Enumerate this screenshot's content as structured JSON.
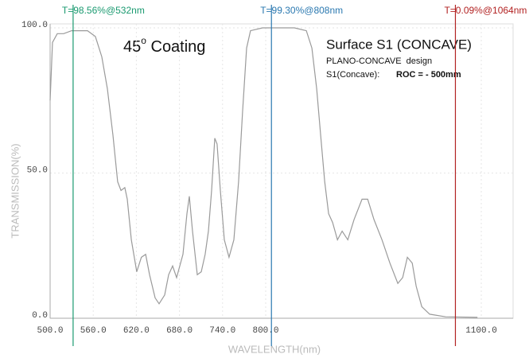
{
  "chart_data": {
    "type": "line",
    "title": {
      "main": "45",
      "sup": "o",
      "rest": " Coating"
    },
    "subtitle": "Surface S1 (CONCAVE)",
    "notes": [
      "PLANO-CONCAVE  design",
      "S1(Concave):",
      "ROC = - 500mm"
    ],
    "xlabel": "WAVELENGTH(nm)",
    "ylabel": "TRANSMISSION(%)",
    "xlim": [
      500,
      1100
    ],
    "ylim": [
      0,
      100
    ],
    "xticks": [
      {
        "value": 500,
        "label": "500.0"
      },
      {
        "value": 560,
        "label": "560.0"
      },
      {
        "value": 620,
        "label": "620.0"
      },
      {
        "value": 680,
        "label": "680.0"
      },
      {
        "value": 740,
        "label": "740.0"
      },
      {
        "value": 800,
        "label": "800.0"
      },
      {
        "value": 1100,
        "label": "1100.0"
      }
    ],
    "yticks": [
      {
        "value": 0,
        "label": "0.0"
      },
      {
        "value": 50,
        "label": "50.0"
      },
      {
        "value": 100,
        "label": "100.0"
      }
    ],
    "grid": true,
    "x": [
      500,
      503.3,
      510,
      518.8,
      529.9,
      552,
      563,
      572,
      579.7,
      587.5,
      594,
      598.6,
      604,
      607.4,
      613,
      620.6,
      627,
      632.9,
      638.4,
      646.1,
      651.7,
      659.4,
      664.9,
      670.5,
      676,
      684.9,
      690.4,
      693.7,
      698.2,
      704.8,
      710.3,
      715.8,
      720.3,
      724.7,
      729.1,
      732.4,
      736.9,
      742.4,
      749,
      755.7,
      762.3,
      767.8,
      773.4,
      778.9,
      795.7,
      812.3,
      840,
      856.6,
      864.3,
      871,
      876.5,
      882.1,
      887.6,
      893.1,
      899.8,
      906.4,
      914.2,
      923,
      934.1,
      941.9,
      950.7,
      961.8,
      972.8,
      983.9,
      990.6,
      997.2,
      1003.9,
      1009.4,
      1017.2,
      1028.2,
      1050.4,
      1094.7
    ],
    "series": [
      {
        "color": "#9a9a9a",
        "values": [
          75,
          95,
          98,
          98,
          99,
          99,
          97,
          90,
          79,
          63,
          47,
          44,
          45,
          41,
          27,
          16,
          21,
          22,
          15,
          7,
          5,
          8,
          15,
          18,
          14,
          22,
          36,
          42,
          30,
          15,
          16,
          22,
          30,
          44,
          62,
          60,
          44,
          27,
          21,
          27,
          47,
          71,
          93,
          99,
          100,
          100,
          100,
          99,
          93,
          79,
          63,
          47,
          36,
          33,
          27,
          30,
          27,
          34,
          41,
          41,
          34,
          27,
          19,
          12,
          14,
          21,
          19,
          11,
          4,
          1.4,
          0.5,
          0.3
        ]
      }
    ],
    "annotations": [
      {
        "x": 532,
        "text": "T=98.56%@532nm",
        "color": "#1a9a70"
      },
      {
        "x": 808,
        "text": "T=99.30%@808nm",
        "color": "#2a78b0"
      },
      {
        "x": 1064,
        "text": "T=0.09%@1064nm",
        "color": "#b22222"
      }
    ]
  }
}
